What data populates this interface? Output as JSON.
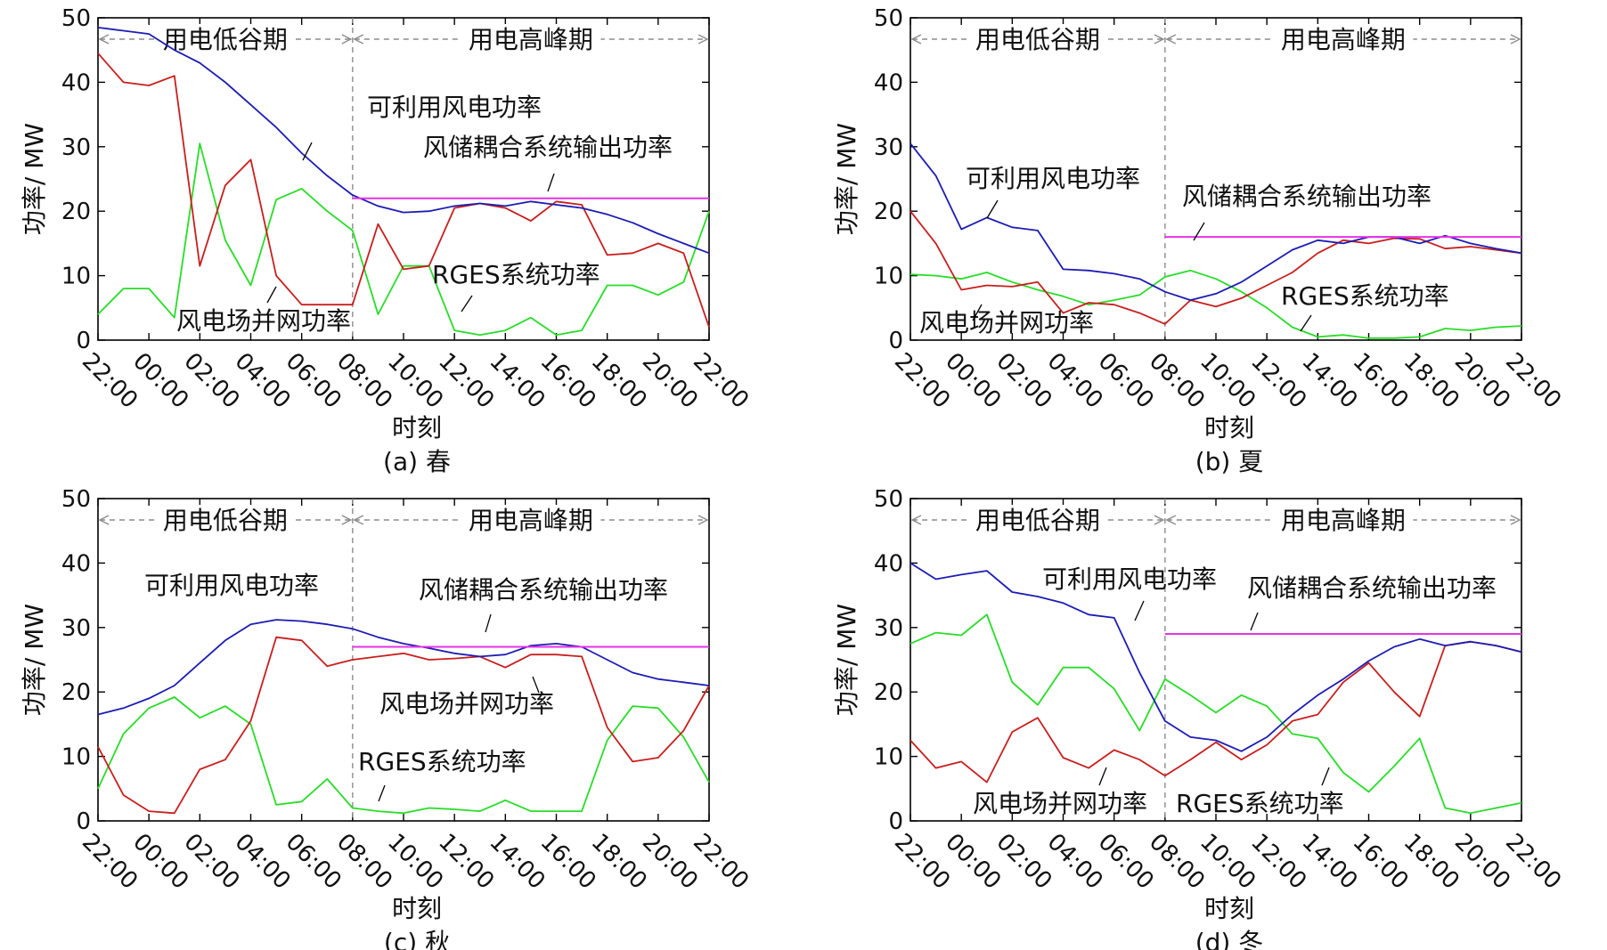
{
  "colors": {
    "available_wind": "#1c1cb4",
    "grid_power": "#c81e1e",
    "rges": "#28dc28",
    "coupled_output": "#e632e6",
    "axis": "#000000",
    "divider": "#8c8c8c"
  },
  "chart_data": [
    {
      "type": "line",
      "caption": "(a) 春",
      "xlabel": "时刻",
      "ylabel": "功率/ MW",
      "ylim": [
        0,
        50
      ],
      "yticks": [
        "0",
        "10",
        "20",
        "30",
        "40",
        "50"
      ],
      "xticks": [
        "22:00",
        "00:00",
        "02:00",
        "04:00",
        "06:00",
        "08:00",
        "10:00",
        "12:00",
        "14:00",
        "16:00",
        "18:00",
        "20:00",
        "22:00"
      ],
      "periods": {
        "low": "用电低谷期",
        "peak": "用电高峰期",
        "divider_hour": 10
      },
      "hours": [
        0,
        1,
        2,
        3,
        4,
        5,
        6,
        7,
        8,
        9,
        10,
        11,
        12,
        13,
        14,
        15,
        16,
        17,
        18,
        19,
        20,
        21,
        22,
        23,
        24
      ],
      "series": [
        {
          "key": "available",
          "name": "可利用风电功率",
          "values": [
            48.5,
            48,
            47.5,
            45,
            43,
            40,
            36.5,
            33,
            29,
            25.5,
            22.5,
            20.8,
            19.8,
            20,
            20.8,
            21.2,
            20.8,
            21.5,
            21,
            20.5,
            19.5,
            18.2,
            16.5,
            15,
            13.5
          ]
        },
        {
          "key": "grid",
          "name": "风电场并网功率",
          "values": [
            44.5,
            40,
            39.5,
            41,
            11.5,
            24,
            28,
            10,
            5.5,
            5.5,
            5.5,
            18,
            11,
            11.5,
            20.5,
            21.2,
            20.5,
            18.5,
            21.5,
            21,
            13.2,
            13.5,
            15,
            13.5,
            2
          ]
        },
        {
          "key": "rges",
          "name": "RGES系统功率",
          "values": [
            4,
            8,
            8,
            3.5,
            30.5,
            15.5,
            8.5,
            21.8,
            23.5,
            20,
            17,
            4,
            11.5,
            11.5,
            1.5,
            0.8,
            1.5,
            3.5,
            0.8,
            1.5,
            8.5,
            8.5,
            7,
            9,
            20
          ]
        },
        {
          "key": "coupled",
          "name": "风储耦合系统输出功率",
          "start_hour": 10,
          "level": 22
        }
      ]
    },
    {
      "type": "line",
      "caption": "(b) 夏",
      "xlabel": "时刻",
      "ylabel": "功率/ MW",
      "ylim": [
        0,
        50
      ],
      "yticks": [
        "0",
        "10",
        "20",
        "30",
        "40",
        "50"
      ],
      "xticks": [
        "22:00",
        "00:00",
        "02:00",
        "04:00",
        "06:00",
        "08:00",
        "10:00",
        "12:00",
        "14:00",
        "16:00",
        "18:00",
        "20:00",
        "22:00"
      ],
      "periods": {
        "low": "用电低谷期",
        "peak": "用电高峰期",
        "divider_hour": 10
      },
      "hours": [
        0,
        1,
        2,
        3,
        4,
        5,
        6,
        7,
        8,
        9,
        10,
        11,
        12,
        13,
        14,
        15,
        16,
        17,
        18,
        19,
        20,
        21,
        22,
        23,
        24
      ],
      "series": [
        {
          "key": "available",
          "name": "可利用风电功率",
          "values": [
            30.5,
            25.5,
            17.2,
            19,
            17.5,
            17,
            11,
            10.8,
            10.3,
            9.5,
            7.5,
            6.2,
            7.2,
            9,
            11.5,
            14,
            15.5,
            15,
            16,
            16,
            15,
            16.2,
            15,
            14.2,
            13.5
          ]
        },
        {
          "key": "grid",
          "name": "风电场并网功率",
          "values": [
            20,
            15,
            7.8,
            8.5,
            8.3,
            9,
            4.2,
            5.8,
            5.5,
            4.2,
            2.5,
            6.2,
            5.2,
            6.5,
            8.5,
            10.5,
            13.5,
            15.5,
            15,
            15.8,
            15.7,
            14.2,
            14.5,
            14,
            13.5
          ]
        },
        {
          "key": "rges",
          "name": "RGES系统功率",
          "values": [
            10.2,
            10,
            9.5,
            10.5,
            9,
            7.8,
            6.8,
            5.5,
            6.2,
            7,
            9.8,
            10.8,
            9.5,
            7.5,
            5,
            2,
            0.5,
            0.8,
            0.3,
            0.3,
            0.5,
            1.8,
            1.5,
            2,
            2.2
          ]
        },
        {
          "key": "coupled",
          "name": "风储耦合系统输出功率",
          "start_hour": 10,
          "level": 16
        }
      ]
    },
    {
      "type": "line",
      "caption": "(c) 秋",
      "xlabel": "时刻",
      "ylabel": "功率/ MW",
      "ylim": [
        0,
        50
      ],
      "yticks": [
        "0",
        "10",
        "20",
        "30",
        "40",
        "50"
      ],
      "xticks": [
        "22:00",
        "00:00",
        "02:00",
        "04:00",
        "06:00",
        "08:00",
        "10:00",
        "12:00",
        "14:00",
        "16:00",
        "18:00",
        "20:00",
        "22:00"
      ],
      "periods": {
        "low": "用电低谷期",
        "peak": "用电高峰期",
        "divider_hour": 10
      },
      "hours": [
        0,
        1,
        2,
        3,
        4,
        5,
        6,
        7,
        8,
        9,
        10,
        11,
        12,
        13,
        14,
        15,
        16,
        17,
        18,
        19,
        20,
        21,
        22,
        23,
        24
      ],
      "series": [
        {
          "key": "available",
          "name": "可利用风电功率",
          "values": [
            16.5,
            17.5,
            19,
            21,
            24.5,
            28,
            30.5,
            31.2,
            31,
            30.5,
            29.8,
            28.5,
            27.5,
            26.8,
            26,
            25.5,
            25.8,
            27.2,
            27.5,
            27,
            25,
            23,
            22,
            21.5,
            21
          ]
        },
        {
          "key": "grid",
          "name": "风电场并网功率",
          "values": [
            11.5,
            4,
            1.5,
            1.2,
            8,
            9.5,
            15.5,
            28.5,
            28,
            24,
            25,
            25.5,
            26,
            25,
            25.2,
            25.5,
            23.8,
            25.8,
            25.8,
            25.5,
            14.5,
            9.2,
            9.8,
            14,
            21
          ]
        },
        {
          "key": "rges",
          "name": "RGES系统功率",
          "values": [
            5,
            13.5,
            17.5,
            19.2,
            16,
            17.8,
            15,
            2.5,
            3,
            6.5,
            2,
            1.5,
            1.2,
            2,
            1.8,
            1.5,
            3.2,
            1.5,
            1.5,
            1.5,
            12.5,
            17.8,
            17.5,
            13,
            6
          ]
        },
        {
          "key": "coupled",
          "name": "风储耦合系统输出功率",
          "start_hour": 10,
          "level": 27
        }
      ]
    },
    {
      "type": "line",
      "caption": "(d) 冬",
      "xlabel": "时刻",
      "ylabel": "功率/ MW",
      "ylim": [
        0,
        50
      ],
      "yticks": [
        "0",
        "10",
        "20",
        "30",
        "40",
        "50"
      ],
      "xticks": [
        "22:00",
        "00:00",
        "02:00",
        "04:00",
        "06:00",
        "08:00",
        "10:00",
        "12:00",
        "14:00",
        "16:00",
        "18:00",
        "20:00",
        "22:00"
      ],
      "periods": {
        "low": "用电低谷期",
        "peak": "用电高峰期",
        "divider_hour": 10
      },
      "hours": [
        0,
        1,
        2,
        3,
        4,
        5,
        6,
        7,
        8,
        9,
        10,
        11,
        12,
        13,
        14,
        15,
        16,
        17,
        18,
        19,
        20,
        21,
        22,
        23,
        24
      ],
      "series": [
        {
          "key": "available",
          "name": "可利用风电功率",
          "values": [
            40,
            37.5,
            38.2,
            38.8,
            35.5,
            34.8,
            33.8,
            32,
            31.5,
            23,
            15.5,
            13,
            12.5,
            10.8,
            13,
            16.5,
            19.5,
            22,
            24.8,
            27,
            28.2,
            27.2,
            27.8,
            27.2,
            26.2
          ]
        },
        {
          "key": "grid",
          "name": "风电场并网功率",
          "values": [
            12.5,
            8.2,
            9.2,
            6,
            13.8,
            16,
            9.8,
            8.2,
            11,
            9.5,
            7,
            9.5,
            12.2,
            9.5,
            11.8,
            15.5,
            16.5,
            21.5,
            24.5,
            20,
            16.2,
            27.2,
            27.8,
            27.2,
            26.2
          ]
        },
        {
          "key": "rges",
          "name": "RGES系统功率",
          "values": [
            27.5,
            29.2,
            28.8,
            32,
            21.5,
            18,
            23.8,
            23.8,
            20.5,
            14,
            22,
            19.5,
            16.8,
            19.5,
            17.8,
            13.5,
            12.8,
            7.5,
            4.5,
            8.5,
            12.8,
            2,
            1.2,
            2,
            2.8
          ]
        },
        {
          "key": "coupled",
          "name": "风储耦合系统输出功率",
          "start_hour": 10,
          "level": 29
        }
      ]
    }
  ]
}
